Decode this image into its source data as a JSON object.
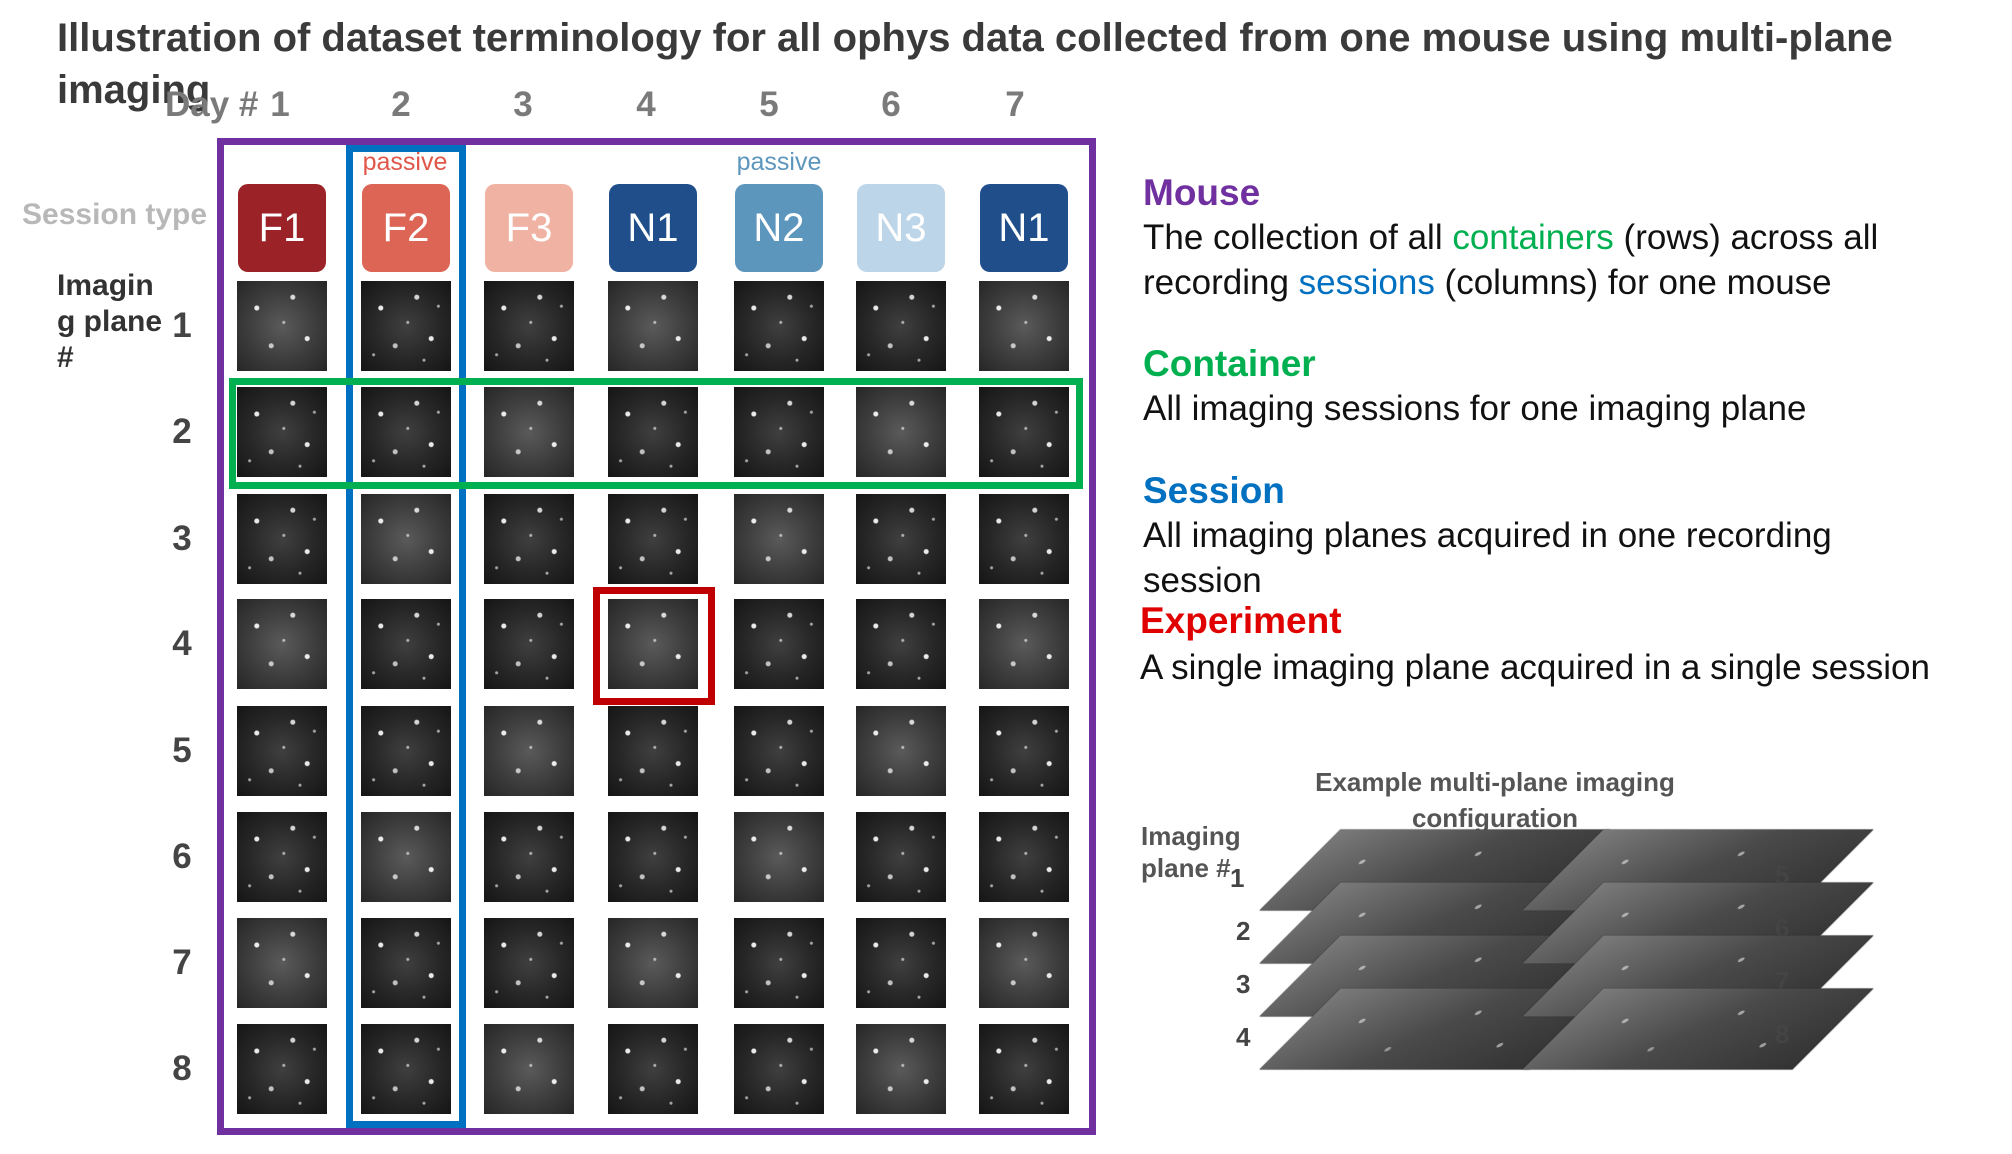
{
  "title": "Illustration of dataset terminology for all ophys data collected from one mouse using multi-plane imaging",
  "day_label": "Day #",
  "days": [
    "1",
    "2",
    "3",
    "4",
    "5",
    "6",
    "7"
  ],
  "passive_label": "passive",
  "session_type_label": "Session type",
  "sessions": [
    {
      "label": "F1",
      "color": "#9b2226"
    },
    {
      "label": "F2",
      "color": "#dd6555"
    },
    {
      "label": "F3",
      "color": "#f0b3a3"
    },
    {
      "label": "N1",
      "color": "#1f4e8a"
    },
    {
      "label": "N2",
      "color": "#5d96bd"
    },
    {
      "label": "N3",
      "color": "#bcd5e8"
    },
    {
      "label": "N1",
      "color": "#1f4e8a"
    }
  ],
  "passive_colors": {
    "F2": "#e0574a",
    "N2": "#5d96bd"
  },
  "imaging_plane_label": "Imagin\ng plane\n#",
  "planes": [
    "1",
    "2",
    "3",
    "4",
    "5",
    "6",
    "7",
    "8"
  ],
  "colors": {
    "mouse": "#7030a0",
    "container": "#00b050",
    "session": "#0070c0",
    "experiment": "#e00000",
    "experiment_box": "#c00000"
  },
  "definitions": {
    "mouse": {
      "term": "Mouse",
      "body_pre": "The collection of all ",
      "body_containers": "containers",
      "body_mid": " (rows) across all recording ",
      "body_sessions": "sessions",
      "body_post": " (columns) for one mouse"
    },
    "container": {
      "term": "Container",
      "body": "All imaging sessions for one imaging plane"
    },
    "session": {
      "term": "Session",
      "body": "All imaging planes acquired in one recording session"
    },
    "experiment": {
      "term": "Experiment",
      "body": "A single imaging plane acquired in a single session"
    }
  },
  "example": {
    "title": "Example multi-plane imaging configuration",
    "plane_label": "Imaging\nplane #",
    "left_numbers": [
      "1",
      "2",
      "3",
      "4"
    ],
    "right_numbers": [
      "5",
      "6",
      "7",
      "8"
    ]
  }
}
